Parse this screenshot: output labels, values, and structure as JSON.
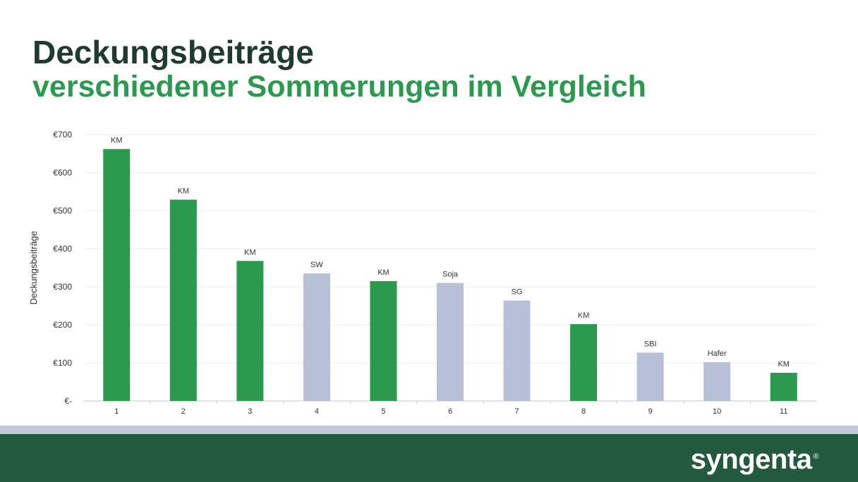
{
  "header": {
    "title_line1": "Deckungsbeiträge",
    "title_line2": "verschiedener Sommerungen im Vergleich"
  },
  "footer": {
    "logo_text": "syngenta",
    "logo_mark": "®"
  },
  "colors": {
    "green_bar": "#2b9a4e",
    "grey_bar": "#b7c0d4",
    "footer_bg": "#235a3e",
    "title_dark": "#1f3b2e"
  },
  "chart_data": {
    "type": "bar",
    "title": "",
    "xlabel": "",
    "ylabel": "Deckungsbeiträge",
    "ylim": [
      0,
      700
    ],
    "yticks": [
      0,
      100,
      200,
      300,
      400,
      500,
      600,
      700
    ],
    "ytick_labels": [
      "€-",
      "€100",
      "€200",
      "€300",
      "€400",
      "€500",
      "€600",
      "€700"
    ],
    "grid": true,
    "categories": [
      "1",
      "2",
      "3",
      "4",
      "5",
      "6",
      "7",
      "8",
      "9",
      "10",
      "11"
    ],
    "values": [
      662,
      529,
      368,
      335,
      315,
      310,
      264,
      202,
      127,
      102,
      74
    ],
    "bar_labels": [
      "KM",
      "KM",
      "KM",
      "SW",
      "KM",
      "Soja",
      "SG",
      "KM",
      "SBI",
      "Hafer",
      "KM"
    ],
    "bar_colors": [
      "green",
      "green",
      "green",
      "grey",
      "green",
      "grey",
      "grey",
      "green",
      "grey",
      "grey",
      "green"
    ]
  }
}
